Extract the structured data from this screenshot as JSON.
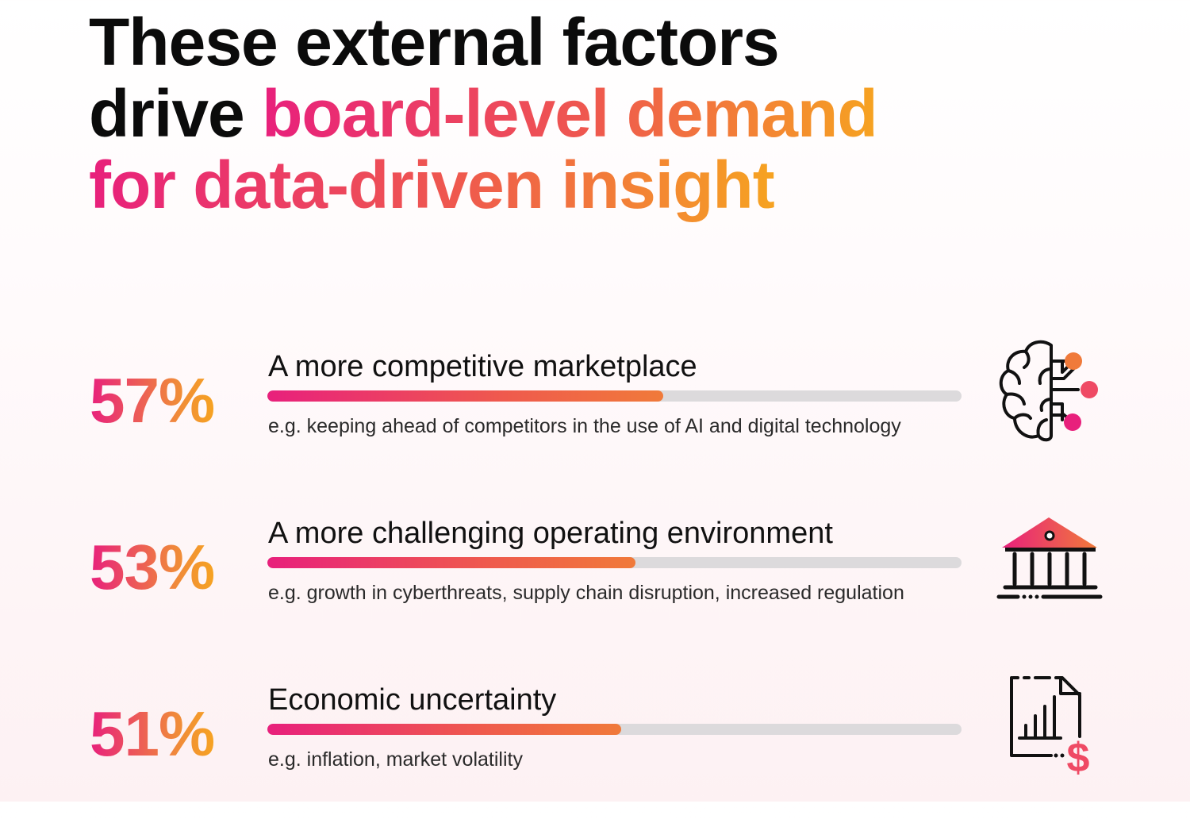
{
  "headline": {
    "line1": "These external factors",
    "line2_plain": "drive ",
    "line2_highlight": "board-level demand",
    "line3_highlight": "for data-driven insight"
  },
  "colors": {
    "gradient_pink": "#e8207c",
    "gradient_orange": "#f6a321",
    "track_gray": "#dcdadc",
    "text_dark": "#111111"
  },
  "chart_data": {
    "type": "bar",
    "categories": [
      "A more competitive marketplace",
      "A more challenging operating environment",
      "Economic uncertainty"
    ],
    "values": [
      57,
      53,
      51
    ],
    "value_labels": [
      "57%",
      "53%",
      "51%"
    ],
    "examples": [
      "e.g. keeping ahead of competitors in the use of AI and digital technology",
      "e.g. growth in cyberthreats, supply chain disruption, increased regulation",
      "e.g. inflation, market volatility"
    ],
    "ylim": [
      0,
      100
    ],
    "title": "These external factors drive board-level demand for data-driven insight",
    "xlabel": "",
    "ylabel": ""
  },
  "factors": [
    {
      "percent_label": "57%",
      "value": 57,
      "title": "A more competitive marketplace",
      "example": "e.g. keeping ahead of competitors in the use of AI and digital technology",
      "icon": "brain-network-icon"
    },
    {
      "percent_label": "53%",
      "value": 53,
      "title": "A more challenging operating environment",
      "example": "e.g. growth in cyberthreats, supply chain disruption, increased regulation",
      "icon": "bank-building-icon"
    },
    {
      "percent_label": "51%",
      "value": 51,
      "title": "Economic uncertainty",
      "example": "e.g. inflation, market volatility",
      "icon": "financial-report-icon"
    }
  ]
}
